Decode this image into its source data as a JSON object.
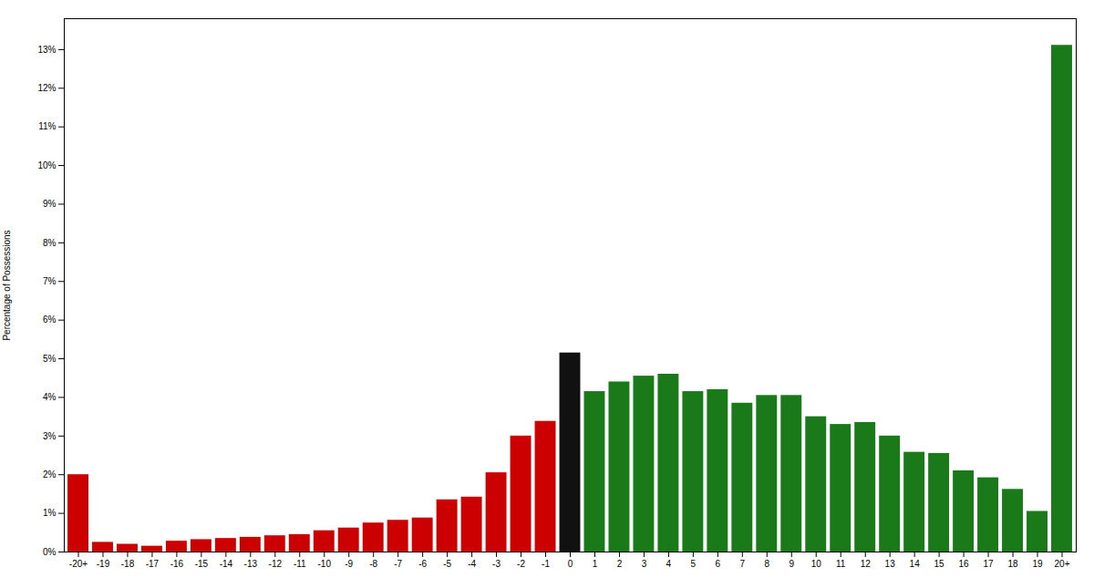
{
  "chart_data": {
    "type": "bar",
    "categories": [
      "-20+",
      "-19",
      "-18",
      "-17",
      "-16",
      "-15",
      "-14",
      "-13",
      "-12",
      "-11",
      "-10",
      "-9",
      "-8",
      "-7",
      "-6",
      "-5",
      "-4",
      "-3",
      "-2",
      "-1",
      "0",
      "1",
      "2",
      "3",
      "4",
      "5",
      "6",
      "7",
      "8",
      "9",
      "10",
      "11",
      "12",
      "13",
      "14",
      "15",
      "16",
      "17",
      "18",
      "19",
      "20+"
    ],
    "values": [
      2.0,
      0.25,
      0.2,
      0.15,
      0.28,
      0.32,
      0.35,
      0.38,
      0.42,
      0.45,
      0.55,
      0.62,
      0.75,
      0.82,
      0.88,
      1.35,
      1.42,
      2.05,
      3.0,
      3.38,
      5.15,
      4.15,
      4.4,
      4.55,
      4.6,
      4.15,
      4.2,
      3.85,
      4.05,
      4.05,
      3.5,
      3.3,
      3.35,
      3.0,
      2.58,
      2.55,
      2.1,
      1.92,
      1.62,
      1.05,
      13.11
    ],
    "colors": [
      "#cc0000",
      "#cc0000",
      "#cc0000",
      "#cc0000",
      "#cc0000",
      "#cc0000",
      "#cc0000",
      "#cc0000",
      "#cc0000",
      "#cc0000",
      "#cc0000",
      "#cc0000",
      "#cc0000",
      "#cc0000",
      "#cc0000",
      "#cc0000",
      "#cc0000",
      "#cc0000",
      "#cc0000",
      "#cc0000",
      "#111111",
      "#1a7a1a",
      "#1a7a1a",
      "#1a7a1a",
      "#1a7a1a",
      "#1a7a1a",
      "#1a7a1a",
      "#1a7a1a",
      "#1a7a1a",
      "#1a7a1a",
      "#1a7a1a",
      "#1a7a1a",
      "#1a7a1a",
      "#1a7a1a",
      "#1a7a1a",
      "#1a7a1a",
      "#1a7a1a",
      "#1a7a1a",
      "#1a7a1a",
      "#1a7a1a",
      "#1a7a1a"
    ],
    "ylabel": "Percentage of Possessions",
    "ylim": [
      0,
      13.8
    ],
    "yticks": [
      {
        "value": 0,
        "label": "0%"
      },
      {
        "value": 1,
        "label": "1%"
      },
      {
        "value": 2,
        "label": "2%"
      },
      {
        "value": 3,
        "label": "3%"
      },
      {
        "value": 4,
        "label": "4%"
      },
      {
        "value": 5,
        "label": "5%"
      },
      {
        "value": 6,
        "label": "6%"
      },
      {
        "value": 7,
        "label": "7%"
      },
      {
        "value": 8,
        "label": "8%"
      },
      {
        "value": 9,
        "label": "9%"
      },
      {
        "value": 10,
        "label": "10%"
      },
      {
        "value": 11,
        "label": "11%"
      },
      {
        "value": 12,
        "label": "12%"
      },
      {
        "value": 13,
        "label": "13%"
      }
    ]
  }
}
